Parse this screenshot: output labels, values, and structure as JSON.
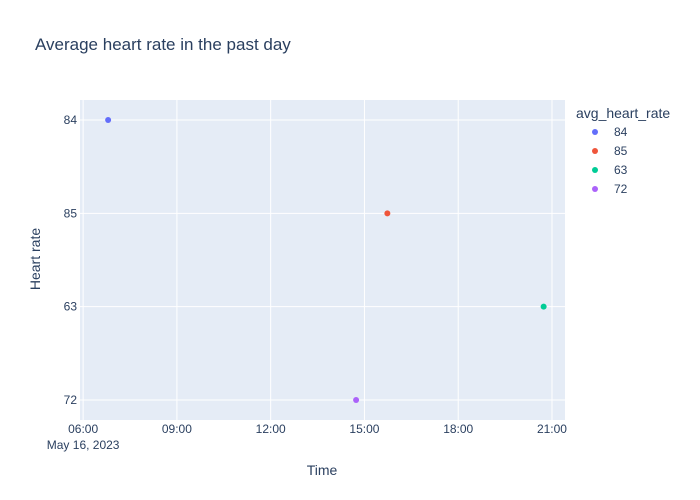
{
  "chart_data": {
    "type": "scatter",
    "title": "Average heart rate in the past day",
    "xlabel": "Time",
    "ylabel": "Heart rate",
    "x_axis_type": "date",
    "xlim": [
      "2023-05-16 05:54",
      "2023-05-16 21:25"
    ],
    "x_ticks": [
      {
        "value": "2023-05-16 06:00",
        "label": "06:00",
        "sublabel": "May 16, 2023"
      },
      {
        "value": "2023-05-16 09:00",
        "label": "09:00"
      },
      {
        "value": "2023-05-16 12:00",
        "label": "12:00"
      },
      {
        "value": "2023-05-16 15:00",
        "label": "15:00"
      },
      {
        "value": "2023-05-16 18:00",
        "label": "18:00"
      },
      {
        "value": "2023-05-16 21:00",
        "label": "21:00"
      }
    ],
    "y_axis_type": "category",
    "y_categories": [
      "84",
      "85",
      "63",
      "72"
    ],
    "grid": true,
    "legend_title": "avg_heart_rate",
    "legend_position": "right",
    "series": [
      {
        "name": "84",
        "color": "#636efa",
        "points": [
          {
            "x": "2023-05-16 06:48",
            "y": "84"
          }
        ]
      },
      {
        "name": "85",
        "color": "#EF553B",
        "points": [
          {
            "x": "2023-05-16 15:44",
            "y": "85"
          }
        ]
      },
      {
        "name": "63",
        "color": "#00cc96",
        "points": [
          {
            "x": "2023-05-16 20:44",
            "y": "63"
          }
        ]
      },
      {
        "name": "72",
        "color": "#ab63fa",
        "points": [
          {
            "x": "2023-05-16 14:44",
            "y": "72"
          }
        ]
      }
    ]
  }
}
